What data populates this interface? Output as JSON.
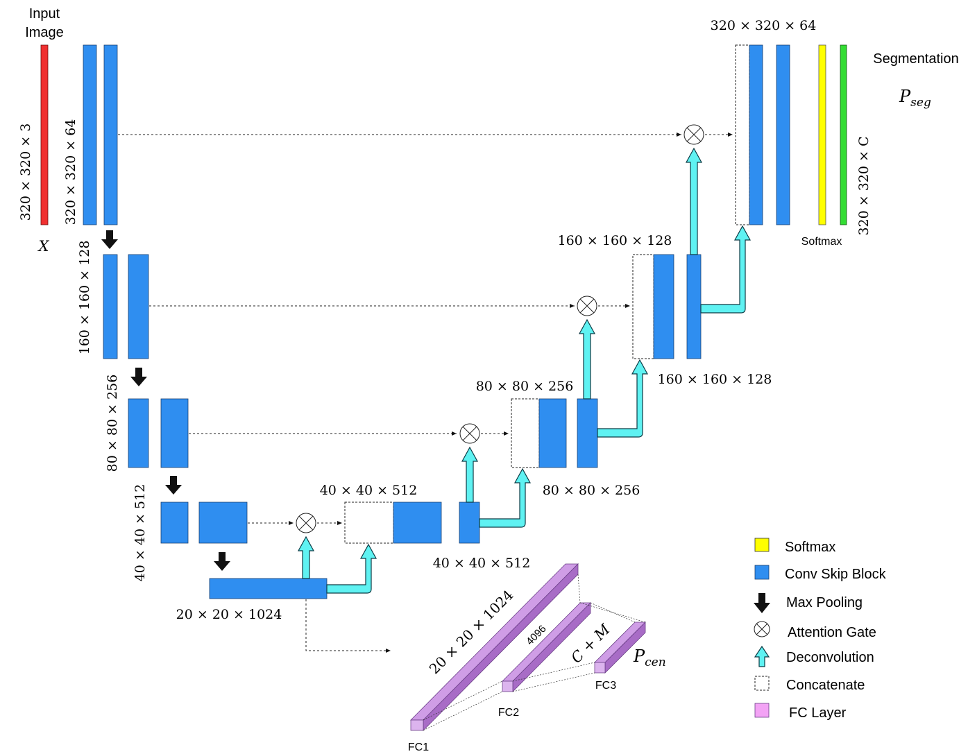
{
  "title": "Attention U-Net with FC branch architecture diagram",
  "colors": {
    "input": "#f03030",
    "conv_block": "#2f8ef0",
    "softmax": "#ffff00",
    "output": "#33dd33",
    "deconv": "#5ff2f2",
    "fc": "#e6a4f0"
  },
  "labels": {
    "input_title_1": "Input",
    "input_title_2": "Image",
    "input_var": "X",
    "input_dim": "320 × 320 × 3",
    "enc1_dim": "320 × 320 × 64",
    "enc2_dim": "160 × 160 × 128",
    "enc3_dim": "80 × 80 × 256",
    "enc4_dim": "40 × 40 × 512",
    "bottleneck_dim": "20 × 20 × 1024",
    "dec4_top": "40 × 40 × 512",
    "dec4_bottom": "40 × 40 × 512",
    "dec3_top": "80 × 80 × 256",
    "dec3_bottom": "80 × 80 × 256",
    "dec2_top": "160 × 160 × 128",
    "dec2_bottom": "160 × 160 × 128",
    "dec1_top": "320 × 320 × 64",
    "output_dim": "320 × 320 × C",
    "segmentation": "Segmentation",
    "p_seg_main": "P",
    "p_seg_sub": "seg",
    "softmax_label": "Softmax",
    "fc1_dim": "20 × 20 × 1024",
    "fc2_dim": "4096",
    "fc3_dim": "C + M",
    "fc1": "FC1",
    "fc2": "FC2",
    "fc3": "FC3",
    "p_cen_main": "P",
    "p_cen_sub": "cen"
  },
  "legend": [
    {
      "icon": "softmax-swatch",
      "label": "Softmax"
    },
    {
      "icon": "conv-swatch",
      "label": "Conv Skip Block"
    },
    {
      "icon": "max-pool-icon",
      "label": "Max Pooling"
    },
    {
      "icon": "attention-gate-icon",
      "label": "Attention Gate"
    },
    {
      "icon": "deconvolution-icon",
      "label": "Deconvolution"
    },
    {
      "icon": "concatenate-swatch",
      "label": "Concatenate"
    },
    {
      "icon": "fc-swatch",
      "label": "FC Layer"
    }
  ]
}
